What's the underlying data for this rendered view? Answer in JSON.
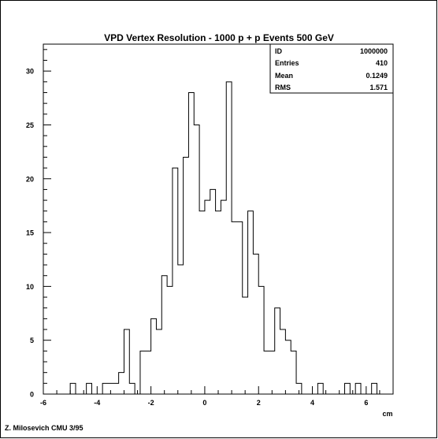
{
  "chart_data": {
    "type": "histogram",
    "title": "VPD Vertex Resolution - 1000 p + p Events 500 GeV",
    "xlabel": "cm",
    "ylabel": "",
    "xlim": [
      -6,
      7
    ],
    "ylim": [
      0,
      32.5
    ],
    "x_ticks": [
      -6,
      -4,
      -2,
      0,
      2,
      4,
      6
    ],
    "y_ticks": [
      0,
      5,
      10,
      15,
      20,
      25,
      30
    ],
    "grid": false,
    "bin_width": 0.2,
    "bin_start": -6,
    "values": [
      0,
      0,
      0,
      0,
      0,
      1,
      0,
      0,
      1,
      0,
      0,
      1,
      1,
      1,
      2,
      6,
      1,
      0,
      4,
      4,
      7,
      6,
      11,
      10,
      21,
      12,
      22,
      28,
      25,
      17,
      18,
      19,
      17,
      18,
      29,
      16,
      16,
      9,
      17,
      13,
      10,
      4,
      4,
      8,
      6,
      5,
      4,
      1,
      0,
      0,
      0,
      1,
      0,
      0,
      0,
      0,
      1,
      0,
      1,
      0,
      0,
      1,
      0,
      0,
      0
    ],
    "stats": {
      "ID": "1000000",
      "Entries": "410",
      "Mean": "0.1249",
      "RMS": "1.571"
    },
    "footer": "Z. Milosevich CMU 3/95"
  }
}
